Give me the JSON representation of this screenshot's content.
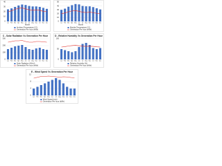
{
  "chart_data": [
    {
      "type": "bar",
      "xlabel": "Month",
      "categories": [
        "Jan",
        "Feb",
        "Mar",
        "Apr",
        "May",
        "Jun",
        "Jul",
        "Aug",
        "Sep",
        "Oct",
        "Nov",
        "Dec"
      ],
      "ylim": [
        0,
        40
      ],
      "yticks": [
        0,
        10,
        20,
        30,
        40
      ],
      "series": [
        {
          "name": "Ambient Temperature (°C)",
          "mark": "bar",
          "color": "#4472c4",
          "values": [
            25,
            27,
            30,
            33,
            35,
            34,
            32,
            31,
            31,
            30,
            28,
            26
          ]
        },
        {
          "name": "Generation Per hour (kWh)",
          "mark": "line",
          "color": "#e0302a",
          "values": [
            20,
            22,
            25,
            27,
            28,
            26,
            24,
            23,
            24,
            23,
            21,
            20
          ]
        }
      ]
    },
    {
      "type": "bar",
      "xlabel": "Month",
      "categories": [
        "Jan",
        "Feb",
        "Mar",
        "Apr",
        "May",
        "Jun",
        "Jul",
        "Aug",
        "Sep",
        "Oct",
        "Nov",
        "Dec"
      ],
      "ylim": [
        0,
        50
      ],
      "yticks": [
        0,
        10,
        20,
        30,
        40,
        50
      ],
      "series": [
        {
          "name": "Module Temperature (°C)",
          "mark": "bar",
          "color": "#4472c4",
          "values": [
            30,
            33,
            38,
            42,
            45,
            44,
            40,
            39,
            39,
            37,
            34,
            31
          ]
        },
        {
          "name": "Generation Per hour (kWh)",
          "mark": "line",
          "color": "#e0302a",
          "values": [
            20,
            22,
            25,
            27,
            28,
            26,
            24,
            23,
            24,
            23,
            21,
            20
          ]
        }
      ]
    },
    {
      "type": "bar",
      "title": "C - Solar Radiation Vs Generation Per Hour",
      "categories": [
        "Jan",
        "Feb",
        "Mar",
        "Apr",
        "May",
        "Jun",
        "Jul",
        "Aug",
        "Sep",
        "Oct",
        "Nov",
        "Dec"
      ],
      "ylim": [
        0,
        300
      ],
      "yticks": [
        0,
        100,
        200,
        300
      ],
      "series": [
        {
          "name": "Solar Radiation (W/m²)",
          "mark": "bar",
          "color": "#4472c4",
          "values": [
            150,
            170,
            190,
            200,
            210,
            180,
            150,
            140,
            160,
            170,
            150,
            140
          ]
        },
        {
          "name": "Generation Per hour (kWh)",
          "mark": "line",
          "color": "#e0302a",
          "values": [
            250,
            260,
            270,
            270,
            275,
            260,
            250,
            250,
            260,
            260,
            255,
            250
          ]
        }
      ]
    },
    {
      "type": "bar",
      "title": "D - Relative Humidity Vs Generation Per Hour",
      "categories": [
        "Jan",
        "Feb",
        "Mar",
        "Apr",
        "May",
        "Jun",
        "Jul",
        "Aug",
        "Sep",
        "Oct",
        "Nov",
        "Dec"
      ],
      "ylim": [
        0,
        100
      ],
      "yticks": [
        0,
        50,
        100
      ],
      "series": [
        {
          "name": "Relative Humidity (%)",
          "mark": "bar",
          "color": "#4472c4",
          "values": [
            50,
            45,
            40,
            35,
            40,
            60,
            75,
            80,
            70,
            55,
            50,
            55
          ]
        },
        {
          "name": "Generation Per hour (kWh)",
          "mark": "line",
          "color": "#e0302a",
          "values": [
            60,
            62,
            65,
            67,
            68,
            66,
            64,
            63,
            64,
            63,
            61,
            60
          ]
        }
      ]
    },
    {
      "type": "bar",
      "title": "E - Wind Speed Vs Generation Per Hour",
      "categories": [
        "Jan",
        "Feb",
        "Mar",
        "Apr",
        "May",
        "Jun",
        "Jul",
        "Aug",
        "Sep",
        "Oct",
        "Nov",
        "Dec"
      ],
      "ylim": [
        0,
        12
      ],
      "yticks": [
        0,
        4,
        8,
        12
      ],
      "series": [
        {
          "name": "Wind Speed (m/s)",
          "mark": "bar",
          "color": "#4472c4",
          "values": [
            4,
            5,
            6,
            7,
            8,
            9,
            10,
            9,
            7,
            5,
            4,
            4
          ]
        },
        {
          "name": "Generation Per hour (kWh)",
          "mark": "line",
          "color": "#e0302a",
          "values": [
            10,
            10.5,
            11,
            11,
            11.2,
            11,
            10.8,
            10.6,
            10.8,
            10.7,
            10.4,
            10.2
          ]
        }
      ]
    }
  ]
}
